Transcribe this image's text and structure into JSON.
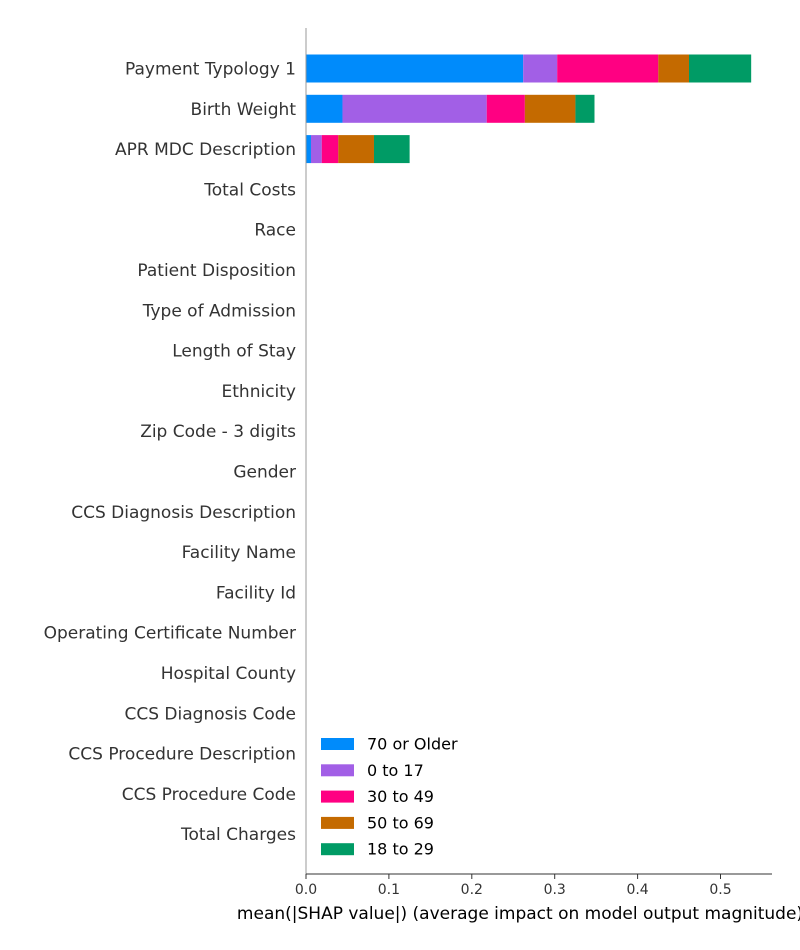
{
  "chart_data": {
    "type": "bar",
    "orientation": "horizontal-stacked",
    "title": "",
    "xlabel": "mean(|SHAP value|) (average impact on model output magnitude)",
    "ylabel": "",
    "xlim": [
      0,
      0.56
    ],
    "xticks": [
      0.0,
      0.1,
      0.2,
      0.3,
      0.4,
      0.5
    ],
    "xtick_labels": [
      "0.0",
      "0.1",
      "0.2",
      "0.3",
      "0.4",
      "0.5"
    ],
    "grid": false,
    "legend_position": "bottom-left",
    "categories": [
      "Payment Typology 1",
      "Birth Weight",
      "APR MDC Description",
      "Total Costs",
      "Race",
      "Patient Disposition",
      "Type of Admission",
      "Length of Stay",
      "Ethnicity",
      "Zip Code - 3 digits",
      "Gender",
      "CCS Diagnosis Description",
      "Facility Name",
      "Facility Id",
      "Operating Certificate Number",
      "Hospital County",
      "CCS Diagnosis Code",
      "CCS Procedure Description",
      "CCS Procedure Code",
      "Total Charges"
    ],
    "series": [
      {
        "name": "70 or Older",
        "color": "#008bfb",
        "values": [
          0.262,
          0.044,
          0.006,
          0,
          0,
          0,
          0,
          0,
          0,
          0,
          0,
          0,
          0,
          0,
          0,
          0,
          0,
          0,
          0,
          0
        ]
      },
      {
        "name": "0 to 17",
        "color": "#a25fe6",
        "values": [
          0.041,
          0.174,
          0.013,
          0,
          0,
          0,
          0,
          0,
          0,
          0,
          0,
          0,
          0,
          0,
          0,
          0,
          0,
          0,
          0,
          0
        ]
      },
      {
        "name": "30 to 49",
        "color": "#ff0082",
        "values": [
          0.122,
          0.046,
          0.02,
          0,
          0,
          0,
          0,
          0,
          0,
          0,
          0,
          0,
          0,
          0,
          0,
          0,
          0,
          0,
          0,
          0
        ]
      },
      {
        "name": "50 to 69",
        "color": "#c46a00",
        "values": [
          0.037,
          0.061,
          0.043,
          0,
          0,
          0,
          0,
          0,
          0,
          0,
          0,
          0,
          0,
          0,
          0,
          0,
          0,
          0,
          0,
          0
        ]
      },
      {
        "name": "18 to 29",
        "color": "#009b65",
        "values": [
          0.075,
          0.023,
          0.043,
          0,
          0,
          0,
          0,
          0,
          0,
          0,
          0,
          0,
          0,
          0,
          0,
          0,
          0,
          0,
          0,
          0
        ]
      }
    ]
  }
}
